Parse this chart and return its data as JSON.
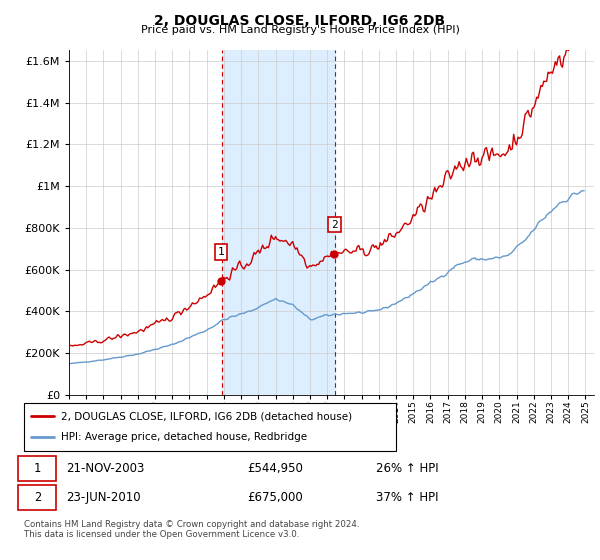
{
  "title": "2, DOUGLAS CLOSE, ILFORD, IG6 2DB",
  "subtitle": "Price paid vs. HM Land Registry's House Price Index (HPI)",
  "legend_line1": "2, DOUGLAS CLOSE, ILFORD, IG6 2DB (detached house)",
  "legend_line2": "HPI: Average price, detached house, Redbridge",
  "transaction1_date": "21-NOV-2003",
  "transaction1_price": 544950,
  "transaction1_pct": "26% ↑ HPI",
  "transaction2_date": "23-JUN-2010",
  "transaction2_price": 675000,
  "transaction2_pct": "37% ↑ HPI",
  "footer": "Contains HM Land Registry data © Crown copyright and database right 2024.\nThis data is licensed under the Open Government Licence v3.0.",
  "ylim": [
    0,
    1650000
  ],
  "xlim_start": 1995.0,
  "xlim_end": 2025.5,
  "sale1_x": 2003.89,
  "sale2_x": 2010.47,
  "shaded_region_color": "#ddeeff",
  "red_line_color": "#cc0000",
  "blue_line_color": "#6699cc",
  "marker_box_color": "#cc0000",
  "grid_color": "#cccccc",
  "yticks": [
    0,
    200000,
    400000,
    600000,
    800000,
    1000000,
    1200000,
    1400000,
    1600000
  ]
}
